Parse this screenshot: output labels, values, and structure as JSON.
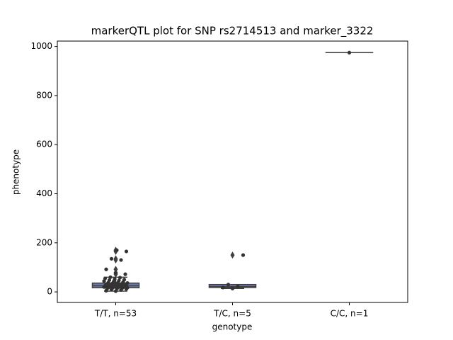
{
  "chart_data": {
    "type": "box",
    "title": "markerQTL plot for SNP rs2714513 and marker_3322",
    "xlabel": "genotype",
    "ylabel": "phenotype",
    "categories": [
      "T/T, n=53",
      "T/C, n=5",
      "C/C, n=1"
    ],
    "boxes": [
      {
        "min": 3,
        "q1": 17,
        "median": 25,
        "q3": 36,
        "max": 60,
        "outliers": [
          72,
          78,
          92,
          130,
          135,
          165,
          170
        ],
        "color": "#6b7aa8"
      },
      {
        "min": 14,
        "q1": 18,
        "median": 22,
        "q3": 30,
        "max": 30,
        "outliers": [
          150
        ],
        "color": "#7c7fc4"
      },
      {
        "min": 975,
        "q1": 975,
        "median": 975,
        "q3": 975,
        "max": 975,
        "outliers": [],
        "color": "#8c8c8c"
      }
    ],
    "points": [
      [
        3,
        5,
        8,
        10,
        12,
        13,
        14,
        15,
        16,
        17,
        17,
        18,
        19,
        20,
        20,
        21,
        22,
        23,
        24,
        25,
        25,
        26,
        27,
        28,
        29,
        30,
        30,
        31,
        32,
        33,
        34,
        35,
        36,
        37,
        38,
        40,
        42,
        44,
        46,
        48,
        50,
        52,
        55,
        58,
        60,
        72,
        78,
        92,
        130,
        135,
        165,
        170,
        28
      ],
      [
        14,
        18,
        22,
        30,
        150
      ],
      [
        975
      ]
    ],
    "point_color": "#333333",
    "ylim": [
      -43,
      1022
    ],
    "yticks": [
      0,
      200,
      400,
      600,
      800,
      1000
    ]
  }
}
